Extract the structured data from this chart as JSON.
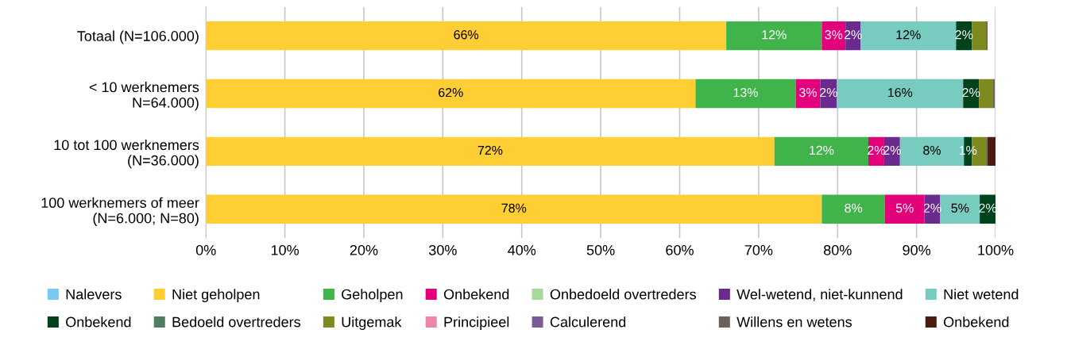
{
  "chart_data": {
    "type": "bar",
    "orientation": "horizontal",
    "stacked": true,
    "categories": [
      "Totaal (N=106.000)",
      "< 10 werknemers\nN=64.000)",
      "10 tot 100 werknemers\n(N=36.000)",
      "100 werknemers of meer\n(N=6.000; N=80)"
    ],
    "series": [
      {
        "name": "Nalevers",
        "color": "#7dc8ee",
        "values": [
          0,
          0,
          0,
          0
        ],
        "value_labels": [
          null,
          null,
          null,
          null
        ]
      },
      {
        "name": "Niet geholpen",
        "color": "#ffcd34",
        "values": [
          65.9,
          62,
          72,
          78
        ],
        "value_labels": [
          "66%",
          "62%",
          "72%",
          "78%"
        ]
      },
      {
        "name": "Geholpen",
        "color": "#40b44a",
        "values": [
          12.1,
          12.7,
          11.9,
          8
        ],
        "value_labels": [
          "12%",
          "13%",
          "12%",
          "8%"
        ]
      },
      {
        "name": "Onbekend",
        "color": "#e3007b",
        "values": [
          3,
          3.1,
          2,
          5
        ],
        "value_labels": [
          "3%",
          "3%",
          "2%",
          "5%"
        ]
      },
      {
        "name": "Onbedoeld overtreders",
        "color": "#a8d89a",
        "values": [
          0,
          0,
          0,
          0
        ],
        "value_labels": [
          null,
          null,
          null,
          null
        ]
      },
      {
        "name": "Wel-wetend, niet-kunnend",
        "color": "#6a2a8e",
        "values": [
          1.9,
          2.1,
          2,
          2
        ],
        "value_labels": [
          "2%",
          "2%",
          "2%",
          "2%"
        ]
      },
      {
        "name": "Niet wetend",
        "color": "#78cbbf",
        "values": [
          12.1,
          16,
          8.1,
          5
        ],
        "value_labels": [
          "12%",
          "16%",
          "8%",
          "5%"
        ]
      },
      {
        "name": "Onbekend",
        "color": "#00421b",
        "values": [
          2,
          2,
          1,
          2
        ],
        "value_labels": [
          "2%",
          "2%",
          "1%",
          "2%"
        ]
      },
      {
        "name": "Bedoeld overtreders",
        "color": "#4f7c63",
        "values": [
          0,
          0,
          0,
          0
        ],
        "value_labels": [
          null,
          null,
          null,
          null
        ]
      },
      {
        "name": "Uitgemak",
        "color": "#7f8a1e",
        "values": [
          1.8,
          1.8,
          1.9,
          0
        ],
        "value_labels": [
          null,
          null,
          null,
          null
        ]
      },
      {
        "name": "Principieel",
        "color": "#ee86a8",
        "values": [
          0,
          0,
          0,
          0
        ],
        "value_labels": [
          null,
          null,
          null,
          null
        ]
      },
      {
        "name": "Calculerend",
        "color": "#7b5a96",
        "values": [
          0,
          0,
          0,
          0
        ],
        "value_labels": [
          null,
          null,
          null,
          null
        ]
      },
      {
        "name": "Willens en wetens",
        "color": "#6e5f5a",
        "values": [
          0.2,
          0.2,
          0.1,
          0.1
        ],
        "value_labels": [
          null,
          null,
          null,
          null
        ]
      },
      {
        "name": "Onbekend",
        "color": "#4d1a0f",
        "values": [
          0,
          0,
          1,
          0
        ],
        "value_labels": [
          null,
          null,
          null,
          null
        ]
      }
    ],
    "xlim": [
      0,
      100
    ],
    "xticks": [
      {
        "value": 0,
        "label": "0%"
      },
      {
        "value": 10,
        "label": "10%"
      },
      {
        "value": 20,
        "label": "20%"
      },
      {
        "value": 30,
        "label": "30%"
      },
      {
        "value": 40,
        "label": "40%"
      },
      {
        "value": 50,
        "label": "50%"
      },
      {
        "value": 60,
        "label": "60%"
      },
      {
        "value": 70,
        "label": "70%"
      },
      {
        "value": 80,
        "label": "80%"
      },
      {
        "value": 90,
        "label": "90%"
      },
      {
        "value": 100,
        "label": "100%"
      }
    ],
    "grid": "x",
    "legend": "bottom"
  }
}
